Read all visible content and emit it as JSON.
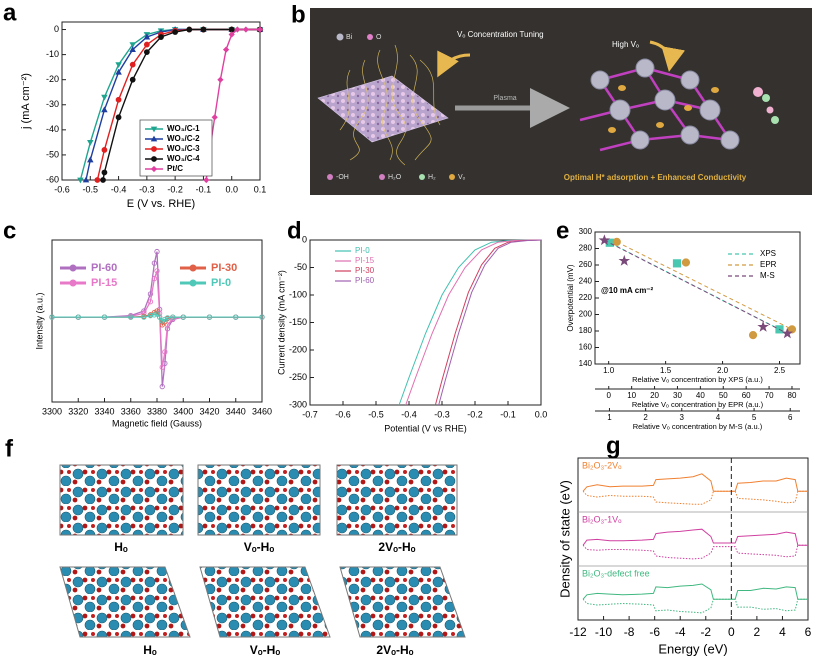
{
  "chart_data": [
    {
      "label": "a",
      "type": "line",
      "xlabel": "E (V vs. RHE)",
      "ylabel": "j (mA cm⁻²)",
      "xlim": [
        -0.6,
        0.1
      ],
      "xticks": [
        -0.6,
        -0.5,
        -0.4,
        -0.3,
        -0.2,
        -0.1,
        {
          "value": 0,
          "label": "0.0"
        },
        0.1
      ],
      "ylim": [
        -60,
        3
      ],
      "yticks": [
        0,
        -10,
        -20,
        -30,
        -40,
        -50,
        -60
      ],
      "series": [
        {
          "name": "WO₃/C-1",
          "color": "#1fa58f",
          "marker": "triangle-down",
          "x": [
            -0.535,
            -0.5,
            -0.45,
            -0.4,
            -0.35,
            -0.3,
            -0.25,
            -0.2,
            -0.1,
            0,
            0.1
          ],
          "values": [
            -60,
            -45,
            -27,
            -14,
            -6,
            -2,
            -0.5,
            0,
            0,
            0,
            0
          ]
        },
        {
          "name": "WO₃/C-2",
          "color": "#1f3fa0",
          "marker": "triangle-up",
          "x": [
            -0.515,
            -0.5,
            -0.45,
            -0.4,
            -0.35,
            -0.3,
            -0.25,
            -0.2,
            -0.1,
            0,
            0.1
          ],
          "values": [
            -60,
            -52,
            -32,
            -17,
            -8,
            -3,
            -1,
            0,
            0,
            0,
            0
          ]
        },
        {
          "name": "WO₃/C-3",
          "color": "#e02020",
          "marker": "circle",
          "x": [
            -0.475,
            -0.45,
            -0.4,
            -0.35,
            -0.3,
            -0.25,
            -0.2,
            -0.15,
            -0.1,
            0,
            0.1
          ],
          "values": [
            -60,
            -48,
            -28,
            -14,
            -6,
            -2,
            -0.5,
            0,
            0,
            0,
            0
          ]
        },
        {
          "name": "WO₃/C-4",
          "color": "#111111",
          "marker": "circle",
          "x": [
            -0.455,
            -0.45,
            -0.4,
            -0.35,
            -0.3,
            -0.25,
            -0.2,
            -0.15,
            -0.1,
            0,
            0.1
          ],
          "values": [
            -60,
            -57,
            -35,
            -20,
            -9,
            -3,
            -1,
            0,
            0,
            0,
            0
          ]
        },
        {
          "name": "Pt/C",
          "color": "#e040a0",
          "marker": "diamond",
          "x": [
            -0.09,
            -0.08,
            -0.06,
            -0.04,
            -0.02,
            0,
            0.02,
            0.05,
            0.1
          ],
          "values": [
            -60,
            -50,
            -35,
            -20,
            -8,
            -2,
            0,
            0,
            0
          ]
        }
      ]
    },
    {
      "label": "c",
      "type": "line",
      "xlabel": "Magnetic field (Gauss)",
      "ylabel": "Intensity (a.u.)",
      "xlim": [
        3300,
        3460
      ],
      "xticks": [
        3300,
        3320,
        3340,
        3360,
        3380,
        3400,
        3420,
        3440,
        3460
      ],
      "ylim": [
        -1.1,
        1.0
      ],
      "x": [
        3300,
        3320,
        3340,
        3360,
        3370,
        3375,
        3378,
        3380,
        3382,
        3384,
        3386,
        3388,
        3392,
        3400,
        3420,
        3440,
        3460
      ],
      "series": [
        {
          "name": "PI-60",
          "color": "#b070c0",
          "marker": "circle-open",
          "values": [
            0,
            0,
            0,
            0.02,
            0.08,
            0.3,
            0.7,
            0.85,
            0.1,
            -0.9,
            -0.6,
            -0.15,
            -0.03,
            0,
            0,
            0,
            0
          ]
        },
        {
          "name": "PI-15",
          "color": "#e878c8",
          "marker": "circle-open",
          "values": [
            0,
            0,
            0,
            0.01,
            0.05,
            0.2,
            0.5,
            0.6,
            0.05,
            -0.65,
            -0.45,
            -0.1,
            -0.02,
            0,
            0,
            0,
            0
          ]
        },
        {
          "name": "PI-30",
          "color": "#e06048",
          "marker": "circle-open",
          "values": [
            0,
            0,
            0,
            0,
            0.01,
            0.03,
            0.06,
            0.08,
            0,
            -0.1,
            -0.06,
            -0.02,
            0,
            0,
            0,
            0,
            0
          ]
        },
        {
          "name": "PI-0",
          "color": "#50c8b8",
          "marker": "circle-open",
          "values": [
            0,
            0,
            0,
            0,
            0,
            0.02,
            0.03,
            0.04,
            0,
            -0.05,
            -0.03,
            -0.01,
            0,
            0,
            0,
            0,
            0
          ]
        }
      ]
    },
    {
      "label": "d",
      "type": "line",
      "xlabel": "Potential (V vs RHE)",
      "ylabel": "Current density (mA cm⁻²)",
      "xlim": [
        -0.7,
        0
      ],
      "xticks": [
        -0.7,
        -0.6,
        -0.5,
        -0.4,
        -0.3,
        -0.2,
        -0.1,
        {
          "value": 0,
          "label": "0.0"
        }
      ],
      "ylim": [
        -300,
        0
      ],
      "yticks": [
        0,
        -50,
        -100,
        -150,
        -200,
        -250,
        -300
      ],
      "series": [
        {
          "name": "PI-0",
          "color": "#40c0b0",
          "x": [
            -0.43,
            -0.4,
            -0.35,
            -0.3,
            -0.25,
            -0.2,
            -0.15,
            -0.1,
            0
          ],
          "values": [
            -300,
            -250,
            -170,
            -100,
            -50,
            -18,
            -4,
            -1,
            0
          ]
        },
        {
          "name": "PI-15",
          "color": "#e070b0",
          "x": [
            -0.41,
            -0.38,
            -0.33,
            -0.28,
            -0.23,
            -0.18,
            -0.13,
            -0.08,
            0
          ],
          "values": [
            -300,
            -250,
            -170,
            -100,
            -50,
            -18,
            -4,
            -1,
            0
          ]
        },
        {
          "name": "PI-30",
          "color": "#d04060",
          "x": [
            -0.32,
            -0.3,
            -0.26,
            -0.22,
            -0.18,
            -0.14,
            -0.1,
            -0.05,
            0
          ],
          "values": [
            -300,
            -255,
            -170,
            -95,
            -45,
            -15,
            -4,
            -1,
            0
          ]
        },
        {
          "name": "PI-60",
          "color": "#a060b0",
          "x": [
            -0.31,
            -0.29,
            -0.25,
            -0.21,
            -0.17,
            -0.13,
            -0.09,
            -0.04,
            0
          ],
          "values": [
            -300,
            -255,
            -170,
            -95,
            -45,
            -15,
            -4,
            -1,
            0
          ]
        }
      ]
    },
    {
      "label": "e",
      "type": "scatter",
      "ylabel": "Overpotential (mV)",
      "annotation": "@10 mA cm⁻²",
      "ylim": [
        140,
        300
      ],
      "yticks": [
        140,
        160,
        180,
        200,
        220,
        240,
        260,
        280,
        300
      ],
      "x_axes": [
        {
          "label": "Relative Vₒ concentration by XPS (a.u.)",
          "lim": [
            0.88,
            2.68
          ],
          "ticks": [
            {
              "value": 1,
              "label": "1.0"
            },
            1.5,
            {
              "value": 2,
              "label": "2.0"
            },
            2.5
          ]
        },
        {
          "label": "Relative Vₒ concentration by EPR (a.u.)",
          "lim": [
            -6,
            83.5
          ],
          "ticks": [
            0,
            10,
            20,
            30,
            40,
            50,
            60,
            70,
            80
          ]
        },
        {
          "label": "Relative Vₒ concentration by M-S (a.u.)",
          "lim": [
            0.6,
            6.27
          ],
          "ticks": [
            1,
            2,
            3,
            4,
            5,
            6
          ]
        }
      ],
      "series": [
        {
          "name": "XPS",
          "color": "#48c8b0",
          "marker": "square",
          "axis": 0,
          "x": [
            1.01,
            1.6,
            2.5
          ],
          "values": [
            287,
            262,
            182
          ]
        },
        {
          "name": "EPR",
          "color": "#d09a40",
          "marker": "circle",
          "axis": 1,
          "x": [
            3.5,
            33.7,
            63,
            80
          ],
          "values": [
            288,
            263,
            175,
            182
          ]
        },
        {
          "name": "M-S",
          "color": "#7a4a7a",
          "marker": "star",
          "axis": 2,
          "x": [
            0.86,
            1.41,
            5.25,
            5.92
          ],
          "values": [
            290,
            265,
            185,
            177
          ]
        }
      ]
    },
    {
      "label": "g",
      "type": "line",
      "xlabel": "Energy (eV)",
      "ylabel": "Density of state (eV)",
      "xlim": [
        -12,
        6
      ],
      "xticks": [
        -12,
        -10,
        -8,
        -6,
        -4,
        -2,
        0,
        2,
        4,
        6
      ],
      "ylim": [
        -1.3,
        1.6
      ],
      "fermi_level": 0,
      "x": [
        -11.6,
        -11.3,
        -10.5,
        -9.5,
        -8.5,
        -7,
        -6.1,
        -5.9,
        -5,
        -4,
        -3,
        -2.3,
        -1.6,
        -1.4,
        0.3,
        0.5,
        1.5,
        2.5,
        3.5,
        4.3,
        5,
        5.2,
        6
      ],
      "series": [
        {
          "name": "Bi₂O₃-2Vₒ",
          "color": "#f08030",
          "spin_up": [
            0,
            0.3,
            0.45,
            0.3,
            0.35,
            0.35,
            0.4,
            0.8,
            0.85,
            0.9,
            1.0,
            1.2,
            0.7,
            0,
            0,
            0.55,
            0.6,
            0.7,
            0.7,
            0.9,
            0.8,
            0,
            0
          ],
          "spin_down": [
            0,
            -0.3,
            -0.4,
            -0.3,
            -0.35,
            -0.35,
            -0.4,
            -0.75,
            -0.8,
            -0.85,
            -0.9,
            -0.9,
            -0.6,
            0,
            0,
            -0.5,
            -0.55,
            -0.6,
            -0.7,
            -0.8,
            -0.75,
            0,
            0
          ]
        },
        {
          "name": "Bi₂O₃-1Vₒ",
          "color": "#d040a0",
          "spin_up": [
            0,
            0.35,
            0.4,
            0.3,
            0.3,
            0.35,
            0.4,
            0.8,
            0.9,
            0.95,
            1.05,
            1.1,
            0.6,
            0.15,
            0.15,
            0.6,
            0.65,
            0.7,
            0.75,
            0.9,
            0.8,
            0,
            0
          ],
          "spin_down": [
            0,
            -0.3,
            -0.35,
            -0.3,
            -0.3,
            -0.35,
            -0.4,
            -0.75,
            -0.85,
            -0.9,
            -0.95,
            -0.9,
            -0.55,
            -0.1,
            -0.1,
            -0.55,
            -0.6,
            -0.65,
            -0.7,
            -0.8,
            -0.75,
            0,
            0
          ]
        },
        {
          "name": "Bi₂O₃-defect free",
          "color": "#40b880",
          "spin_up": [
            0,
            0.3,
            0.4,
            0.35,
            0.3,
            0.35,
            0.4,
            0.85,
            0.8,
            0.9,
            0.95,
            1.05,
            0.65,
            0,
            0,
            0.6,
            0.6,
            0.75,
            0.7,
            0.85,
            0.8,
            0,
            0
          ],
          "spin_down": [
            0,
            -0.3,
            -0.4,
            -0.35,
            -0.3,
            -0.35,
            -0.4,
            -0.8,
            -0.75,
            -0.85,
            -0.9,
            -0.95,
            -0.6,
            0,
            0,
            -0.55,
            -0.55,
            -0.7,
            -0.65,
            -0.8,
            -0.75,
            0,
            0
          ]
        }
      ]
    }
  ],
  "panel_b": {
    "label": "b",
    "atoms": [
      "Bi",
      "O"
    ],
    "tuning": "Vₒ Concentration Tuning",
    "high": "High Vₒ",
    "process": "Plasma",
    "species": [
      "-OH",
      "H₂O",
      "H₂",
      "Vₒ"
    ],
    "caption": "Optimal H* adsorption + Enhanced Conductivity"
  },
  "panel_f": {
    "label": "f",
    "top_labels": [
      "Hₒ",
      "Vₒ-Hₒ",
      "2Vₒ-Hₒ"
    ],
    "bottom_labels": [
      "Hₒ",
      "Vₒ-Hₒ",
      "2Vₒ-Hₒ"
    ]
  }
}
